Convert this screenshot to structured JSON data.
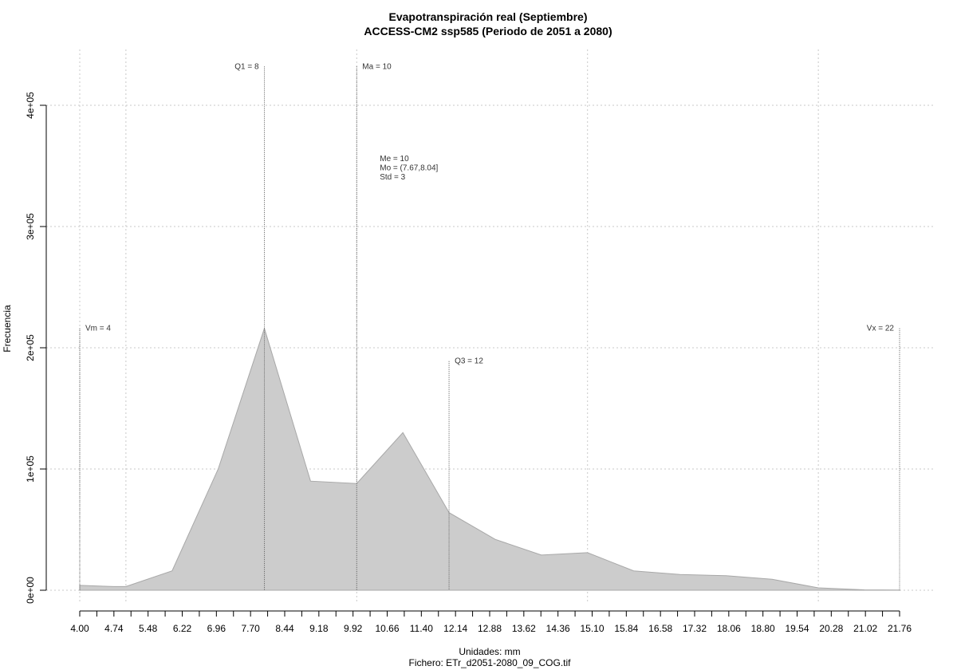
{
  "chart_data": {
    "type": "area",
    "title": "Evapotranspiración real (Septiembre)",
    "subtitle": "ACCESS-CM2 ssp585 (Periodo de 2051 a 2080)",
    "xlabel": "Unidades: mm",
    "source": "Fichero: ETr_d2051-2080_09_COG.tif",
    "ylabel": "Frecuencia",
    "xlim": [
      4.0,
      21.76
    ],
    "ylim": [
      0,
      400000
    ],
    "grid": true,
    "x_tick_labels": [
      "4.00",
      "4.74",
      "5.48",
      "6.22",
      "6.96",
      "7.70",
      "8.44",
      "9.18",
      "9.92",
      "10.66",
      "11.40",
      "12.14",
      "12.88",
      "13.62",
      "14.36",
      "15.10",
      "15.84",
      "16.58",
      "17.32",
      "18.06",
      "18.80",
      "19.54",
      "20.28",
      "21.02",
      "21.76"
    ],
    "x_tick_values": [
      4.0,
      4.74,
      5.48,
      6.22,
      6.96,
      7.7,
      8.44,
      9.18,
      9.92,
      10.66,
      11.4,
      12.14,
      12.88,
      13.62,
      14.36,
      15.1,
      15.84,
      16.58,
      17.32,
      18.06,
      18.8,
      19.54,
      20.28,
      21.02,
      21.76
    ],
    "y_ticks": [
      0,
      100000,
      200000,
      300000,
      400000
    ],
    "y_tick_labels": [
      "0e+00",
      "1e+05",
      "2e+05",
      "3e+05",
      "4e+05"
    ],
    "series": [
      {
        "color": "#cccccc",
        "x": [
          4.0,
          4.74,
          5.0,
          6.0,
          7.0,
          8.0,
          9.0,
          10.0,
          11.0,
          12.0,
          13.0,
          14.0,
          15.0,
          16.0,
          17.0,
          18.0,
          19.0,
          20.0,
          21.0,
          21.76
        ],
        "y": [
          4000,
          3000,
          3000,
          16000,
          100000,
          216000,
          90000,
          88000,
          130000,
          64000,
          42000,
          29000,
          31000,
          16000,
          13000,
          12000,
          9000,
          2000,
          300,
          200
        ]
      }
    ],
    "markers": [
      {
        "label": "Vm = 4",
        "x": 4.0,
        "top_y": 216000,
        "side": "right"
      },
      {
        "label": "Q1 = 8",
        "x": 8.0,
        "top_y": 432000,
        "side": "left"
      },
      {
        "label": "Ma = 10",
        "x": 10.0,
        "top_y": 432000,
        "side": "right"
      },
      {
        "label": "Q3 = 12",
        "x": 12.0,
        "top_y": 189000,
        "side": "right"
      },
      {
        "label": "Vx = 22",
        "x": 21.76,
        "top_y": 216000,
        "side": "left"
      }
    ],
    "stats": [
      "Me = 10",
      "Mo = (7.67,8.04]",
      "Std = 3"
    ],
    "stats_anchor": {
      "x": 10.5,
      "y": 354000
    }
  }
}
